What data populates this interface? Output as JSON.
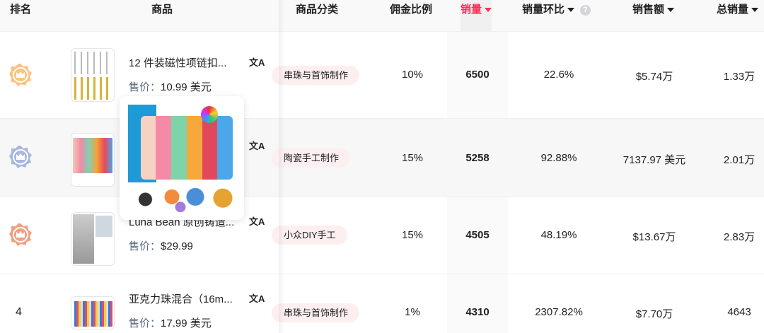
{
  "header": {
    "rank": "排名",
    "product": "商品",
    "category": "商品分类",
    "commission": "佣金比例",
    "sales": "销量",
    "sales_change": "销量环比",
    "help": "?",
    "revenue": "销售额",
    "total_sales": "总销量",
    "active_sort_color": "#fe2c55"
  },
  "rows": [
    {
      "rank": "1",
      "rank_icon": "gold-crown-badge",
      "rank_color": "#fdc27f",
      "title": "12 件装磁性项链扣...",
      "price_label": "售价：",
      "price": "10.99 美元",
      "category": "串珠与首饰制作",
      "commission": "10%",
      "sales": "6500",
      "sales_change": "22.6%",
      "revenue": "$5.74万",
      "total_sales": "1.33万"
    },
    {
      "rank": "2",
      "rank_icon": "silver-crown-badge",
      "rank_color": "#a9b6e0",
      "title": "",
      "price_label": "",
      "price": "",
      "category": "陶瓷手工制作",
      "commission": "15%",
      "sales": "5258",
      "sales_change": "92.88%",
      "revenue": "7137.97 美元",
      "total_sales": "2.01万"
    },
    {
      "rank": "3",
      "rank_icon": "bronze-crown-badge",
      "rank_color": "#f0a183",
      "title": "Luna Bean 原创铸造...",
      "price_label": "售价：",
      "price": "$29.99",
      "category": "小众DIY手工",
      "commission": "15%",
      "sales": "4505",
      "sales_change": "48.19%",
      "revenue": "$13.67万",
      "total_sales": "2.83万"
    },
    {
      "rank": "4",
      "title": "亚克力珠混合（16m...",
      "price_label": "售价：",
      "price": "17.99 美元",
      "category": "串珠与首饰制作",
      "commission": "1%",
      "sales": "4310",
      "sales_change": "2307.82%",
      "revenue": "$7.70万",
      "total_sales": "4643"
    }
  ],
  "translate_icon": "translate-icon"
}
